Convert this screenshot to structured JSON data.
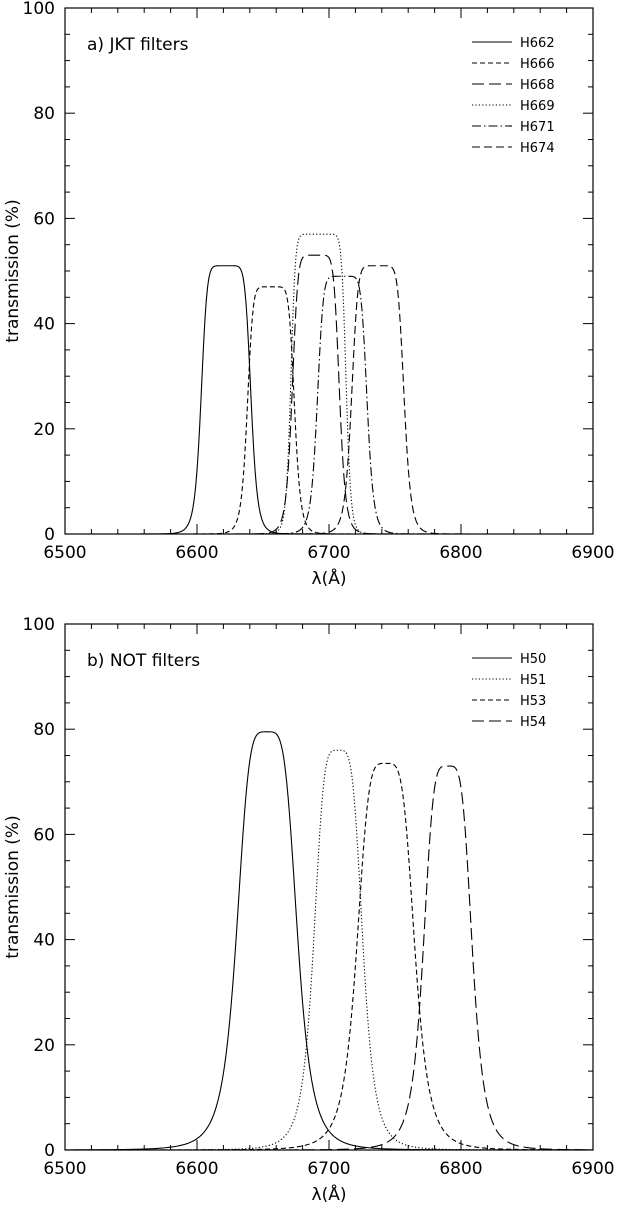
{
  "chart_data": [
    {
      "type": "line",
      "panel_label": "a) JKT filters",
      "xlabel": "λ(Å)",
      "ylabel": "transmission (%)",
      "xlim": [
        6500,
        6900
      ],
      "ylim": [
        0,
        100
      ],
      "x_ticks": [
        6500,
        6600,
        6700,
        6800,
        6900
      ],
      "y_ticks": [
        0,
        20,
        40,
        60,
        80,
        100
      ],
      "legend_position": "top-right",
      "series": [
        {
          "name": "H662",
          "dash": "solid",
          "peak_x": 6622,
          "peak_y": 51,
          "fwhm": 38,
          "shape": 4
        },
        {
          "name": "H666",
          "dash": "short-dash",
          "peak_x": 6656,
          "peak_y": 47,
          "fwhm": 36,
          "shape": 4
        },
        {
          "name": "H668",
          "dash": "long-dash",
          "peak_x": 6690,
          "peak_y": 53,
          "fwhm": 36,
          "shape": 4
        },
        {
          "name": "H669",
          "dash": "dotted",
          "peak_x": 6692,
          "peak_y": 57,
          "fwhm": 42,
          "shape": 6
        },
        {
          "name": "H671",
          "dash": "dash-dot",
          "peak_x": 6710,
          "peak_y": 49,
          "fwhm": 38,
          "shape": 4
        },
        {
          "name": "H674",
          "dash": "medium-dash",
          "peak_x": 6737,
          "peak_y": 51,
          "fwhm": 40,
          "shape": 4
        }
      ]
    },
    {
      "type": "line",
      "panel_label": "b) NOT filters",
      "xlabel": "λ(Å)",
      "ylabel": "transmission (%)",
      "xlim": [
        6500,
        6900
      ],
      "ylim": [
        0,
        100
      ],
      "x_ticks": [
        6500,
        6600,
        6700,
        6800,
        6900
      ],
      "y_ticks": [
        0,
        20,
        40,
        60,
        80,
        100
      ],
      "legend_position": "top-right",
      "series": [
        {
          "name": "H50",
          "dash": "solid",
          "peak_x": 6653,
          "peak_y": 79.5,
          "fwhm": 47,
          "shape": 2.2
        },
        {
          "name": "H51",
          "dash": "dotted",
          "peak_x": 6707,
          "peak_y": 76,
          "fwhm": 38,
          "shape": 2.2
        },
        {
          "name": "H53",
          "dash": "short-dash",
          "peak_x": 6743,
          "peak_y": 73.5,
          "fwhm": 45,
          "shape": 2.2
        },
        {
          "name": "H54",
          "dash": "long-dash",
          "peak_x": 6790,
          "peak_y": 73,
          "fwhm": 38,
          "shape": 2.2
        }
      ]
    }
  ]
}
